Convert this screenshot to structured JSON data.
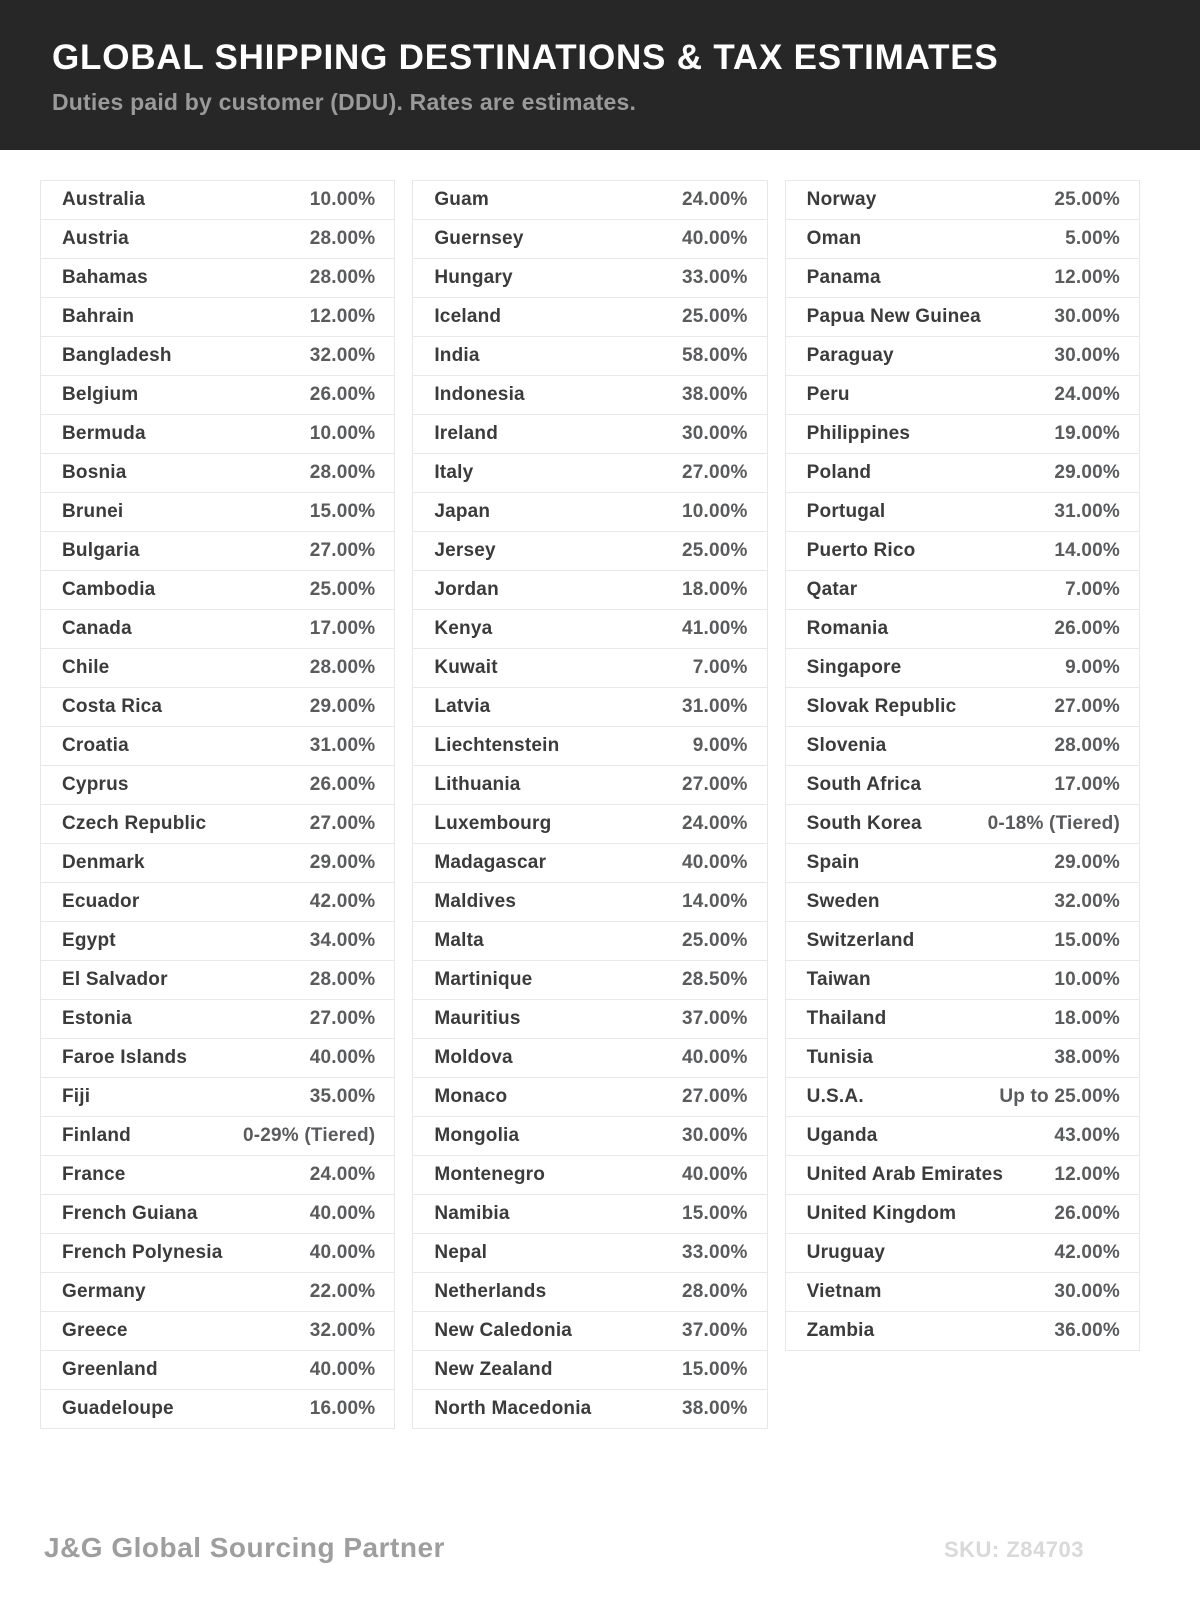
{
  "header": {
    "title": "GLOBAL SHIPPING DESTINATIONS & TAX ESTIMATES",
    "subtitle": "Duties paid by customer (DDU). Rates are estimates."
  },
  "columns": [
    [
      {
        "country": "Australia",
        "rate": "10.00%"
      },
      {
        "country": "Austria",
        "rate": "28.00%"
      },
      {
        "country": "Bahamas",
        "rate": "28.00%"
      },
      {
        "country": "Bahrain",
        "rate": "12.00%"
      },
      {
        "country": "Bangladesh",
        "rate": "32.00%"
      },
      {
        "country": "Belgium",
        "rate": "26.00%"
      },
      {
        "country": "Bermuda",
        "rate": "10.00%"
      },
      {
        "country": "Bosnia",
        "rate": "28.00%"
      },
      {
        "country": "Brunei",
        "rate": "15.00%"
      },
      {
        "country": "Bulgaria",
        "rate": "27.00%"
      },
      {
        "country": "Cambodia",
        "rate": "25.00%"
      },
      {
        "country": "Canada",
        "rate": "17.00%"
      },
      {
        "country": "Chile",
        "rate": "28.00%"
      },
      {
        "country": "Costa Rica",
        "rate": "29.00%"
      },
      {
        "country": "Croatia",
        "rate": "31.00%"
      },
      {
        "country": "Cyprus",
        "rate": "26.00%"
      },
      {
        "country": "Czech Republic",
        "rate": "27.00%"
      },
      {
        "country": "Denmark",
        "rate": "29.00%"
      },
      {
        "country": "Ecuador",
        "rate": "42.00%"
      },
      {
        "country": "Egypt",
        "rate": "34.00%"
      },
      {
        "country": "El Salvador",
        "rate": "28.00%"
      },
      {
        "country": "Estonia",
        "rate": "27.00%"
      },
      {
        "country": "Faroe Islands",
        "rate": "40.00%"
      },
      {
        "country": "Fiji",
        "rate": "35.00%"
      },
      {
        "country": "Finland",
        "rate": "0-29% (Tiered)"
      },
      {
        "country": "France",
        "rate": "24.00%"
      },
      {
        "country": "French Guiana",
        "rate": "40.00%"
      },
      {
        "country": "French Polynesia",
        "rate": "40.00%"
      },
      {
        "country": "Germany",
        "rate": "22.00%"
      },
      {
        "country": "Greece",
        "rate": "32.00%"
      },
      {
        "country": "Greenland",
        "rate": "40.00%"
      },
      {
        "country": "Guadeloupe",
        "rate": "16.00%"
      }
    ],
    [
      {
        "country": "Guam",
        "rate": "24.00%"
      },
      {
        "country": "Guernsey",
        "rate": "40.00%"
      },
      {
        "country": "Hungary",
        "rate": "33.00%"
      },
      {
        "country": "Iceland",
        "rate": "25.00%"
      },
      {
        "country": "India",
        "rate": "58.00%"
      },
      {
        "country": "Indonesia",
        "rate": "38.00%"
      },
      {
        "country": "Ireland",
        "rate": "30.00%"
      },
      {
        "country": "Italy",
        "rate": "27.00%"
      },
      {
        "country": "Japan",
        "rate": "10.00%"
      },
      {
        "country": "Jersey",
        "rate": "25.00%"
      },
      {
        "country": "Jordan",
        "rate": "18.00%"
      },
      {
        "country": "Kenya",
        "rate": "41.00%"
      },
      {
        "country": "Kuwait",
        "rate": "7.00%"
      },
      {
        "country": "Latvia",
        "rate": "31.00%"
      },
      {
        "country": "Liechtenstein",
        "rate": "9.00%"
      },
      {
        "country": "Lithuania",
        "rate": "27.00%"
      },
      {
        "country": "Luxembourg",
        "rate": "24.00%"
      },
      {
        "country": "Madagascar",
        "rate": "40.00%"
      },
      {
        "country": "Maldives",
        "rate": "14.00%"
      },
      {
        "country": "Malta",
        "rate": "25.00%"
      },
      {
        "country": "Martinique",
        "rate": "28.50%"
      },
      {
        "country": "Mauritius",
        "rate": "37.00%"
      },
      {
        "country": "Moldova",
        "rate": "40.00%"
      },
      {
        "country": "Monaco",
        "rate": "27.00%"
      },
      {
        "country": "Mongolia",
        "rate": "30.00%"
      },
      {
        "country": "Montenegro",
        "rate": "40.00%"
      },
      {
        "country": "Namibia",
        "rate": "15.00%"
      },
      {
        "country": "Nepal",
        "rate": "33.00%"
      },
      {
        "country": "Netherlands",
        "rate": "28.00%"
      },
      {
        "country": "New Caledonia",
        "rate": "37.00%"
      },
      {
        "country": "New Zealand",
        "rate": "15.00%"
      },
      {
        "country": "North Macedonia",
        "rate": "38.00%"
      }
    ],
    [
      {
        "country": "Norway",
        "rate": "25.00%"
      },
      {
        "country": "Oman",
        "rate": "5.00%"
      },
      {
        "country": "Panama",
        "rate": "12.00%"
      },
      {
        "country": "Papua New Guinea",
        "rate": "30.00%"
      },
      {
        "country": "Paraguay",
        "rate": "30.00%"
      },
      {
        "country": "Peru",
        "rate": "24.00%"
      },
      {
        "country": "Philippines",
        "rate": "19.00%"
      },
      {
        "country": "Poland",
        "rate": "29.00%"
      },
      {
        "country": "Portugal",
        "rate": "31.00%"
      },
      {
        "country": "Puerto Rico",
        "rate": "14.00%"
      },
      {
        "country": "Qatar",
        "rate": "7.00%"
      },
      {
        "country": "Romania",
        "rate": "26.00%"
      },
      {
        "country": "Singapore",
        "rate": "9.00%"
      },
      {
        "country": "Slovak Republic",
        "rate": "27.00%"
      },
      {
        "country": "Slovenia",
        "rate": "28.00%"
      },
      {
        "country": "South Africa",
        "rate": "17.00%"
      },
      {
        "country": "South Korea",
        "rate": "0-18% (Tiered)"
      },
      {
        "country": "Spain",
        "rate": "29.00%"
      },
      {
        "country": "Sweden",
        "rate": "32.00%"
      },
      {
        "country": "Switzerland",
        "rate": "15.00%"
      },
      {
        "country": "Taiwan",
        "rate": "10.00%"
      },
      {
        "country": "Thailand",
        "rate": "18.00%"
      },
      {
        "country": "Tunisia",
        "rate": "38.00%"
      },
      {
        "country": "U.S.A.",
        "rate": "Up to 25.00%"
      },
      {
        "country": "Uganda",
        "rate": "43.00%"
      },
      {
        "country": "United Arab Emirates",
        "rate": "12.00%"
      },
      {
        "country": "United Kingdom",
        "rate": "26.00%"
      },
      {
        "country": "Uruguay",
        "rate": "42.00%"
      },
      {
        "country": "Vietnam",
        "rate": "30.00%"
      },
      {
        "country": "Zambia",
        "rate": "36.00%"
      }
    ]
  ],
  "footer": {
    "brand": "J&G Global Sourcing Partner",
    "sku": "SKU: Z84703"
  },
  "colors": {
    "header_background": "#272727",
    "title_text": "#ffffff",
    "subtitle_text": "#9a9a9a",
    "country_text": "#3b3b3b",
    "rate_text": "#5a5b5d",
    "row_border": "#e8e8e8",
    "brand_text": "#9e9e9e",
    "sku_text": "#d9d9d9"
  }
}
